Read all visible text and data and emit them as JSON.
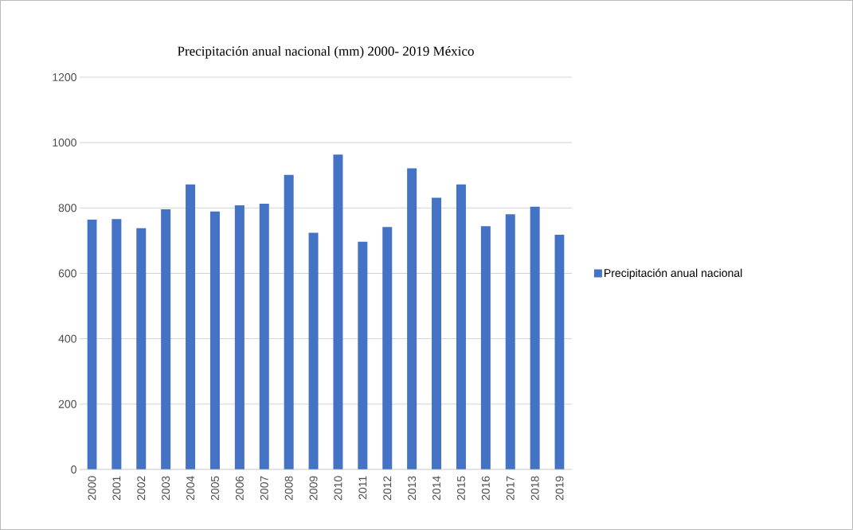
{
  "chart_data": {
    "type": "bar",
    "title": "Precipitación anual nacional (mm) 2000- 2019 México",
    "categories": [
      "2000",
      "2001",
      "2002",
      "2003",
      "2004",
      "2005",
      "2006",
      "2007",
      "2008",
      "2009",
      "2010",
      "2011",
      "2012",
      "2013",
      "2014",
      "2015",
      "2016",
      "2017",
      "2018",
      "2019"
    ],
    "series": [
      {
        "name": "Precipitación anual nacional",
        "color": "#4472c4",
        "values": [
          764,
          766,
          738,
          796,
          872,
          789,
          808,
          813,
          901,
          724,
          963,
          697,
          742,
          921,
          831,
          872,
          744,
          781,
          804,
          718
        ]
      }
    ],
    "ylim": [
      0,
      1200
    ],
    "yticks": [
      0,
      200,
      400,
      600,
      800,
      1000,
      1200
    ],
    "grid": "y",
    "legend": "right"
  }
}
